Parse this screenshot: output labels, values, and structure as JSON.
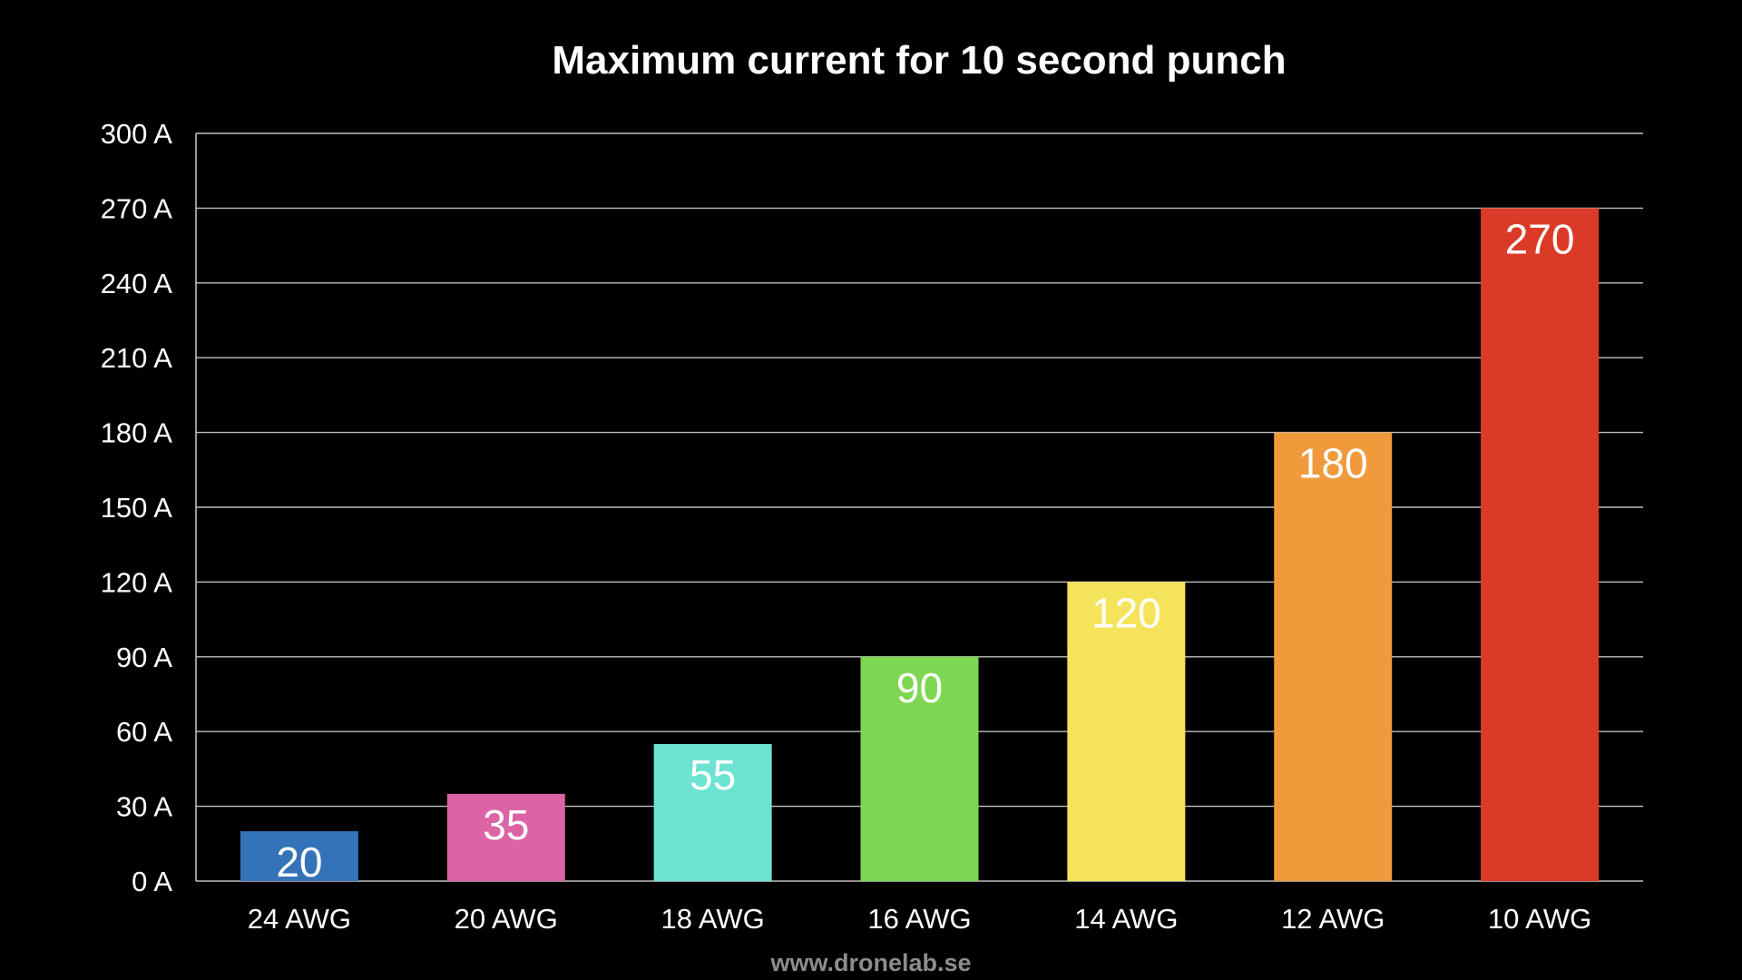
{
  "chart_data": {
    "type": "bar",
    "title": "Maximum current for 10 second punch",
    "xlabel": "",
    "ylabel": "",
    "categories": [
      "24 AWG",
      "20 AWG",
      "18 AWG",
      "16 AWG",
      "14 AWG",
      "12 AWG",
      "10 AWG"
    ],
    "values": [
      20,
      35,
      55,
      90,
      120,
      180,
      270
    ],
    "value_labels": [
      "20",
      "35",
      "55",
      "90",
      "120",
      "180",
      "270"
    ],
    "colors": [
      "#3573b9",
      "#dc63a5",
      "#6de3d2",
      "#7fd653",
      "#f6e35c",
      "#f09a3c",
      "#dc3a28"
    ],
    "ylim": [
      0,
      300
    ],
    "yticks": [
      0,
      30,
      60,
      90,
      120,
      150,
      180,
      210,
      240,
      270,
      300
    ],
    "ytick_labels": [
      "0 A",
      "30 A",
      "60 A",
      "90 A",
      "120 A",
      "150 A",
      "180 A",
      "210 A",
      "240 A",
      "270 A",
      "300 A"
    ],
    "grid": true,
    "legend": "none"
  },
  "footer": {
    "source": "www.dronelab.se"
  }
}
